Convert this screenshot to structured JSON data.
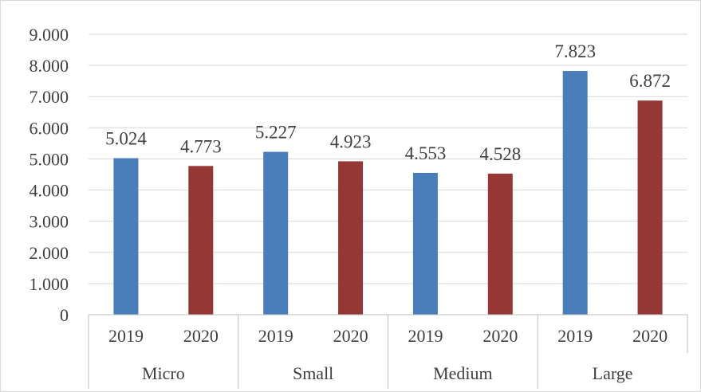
{
  "chart_data": {
    "type": "bar",
    "title": "",
    "xlabel": "",
    "ylabel": "",
    "ylim": [
      0,
      9
    ],
    "y_ticks": [
      0,
      1,
      2,
      3,
      4,
      5,
      6,
      7,
      8,
      9
    ],
    "y_tick_labels": [
      "0",
      "1.000",
      "2.000",
      "3.000",
      "4.000",
      "5.000",
      "6.000",
      "7.000",
      "8.000",
      "9.000"
    ],
    "grid": true,
    "legend": "none",
    "groups": [
      {
        "name": "Micro",
        "bars": [
          {
            "year": "2019",
            "value": 5.024,
            "label": "5.024"
          },
          {
            "year": "2020",
            "value": 4.773,
            "label": "4.773"
          }
        ]
      },
      {
        "name": "Small",
        "bars": [
          {
            "year": "2019",
            "value": 5.227,
            "label": "5.227"
          },
          {
            "year": "2020",
            "value": 4.923,
            "label": "4.923"
          }
        ]
      },
      {
        "name": "Medium",
        "bars": [
          {
            "year": "2019",
            "value": 4.553,
            "label": "4.553"
          },
          {
            "year": "2020",
            "value": 4.528,
            "label": "4.528"
          }
        ]
      },
      {
        "name": "Large",
        "bars": [
          {
            "year": "2019",
            "value": 7.823,
            "label": "7.823"
          },
          {
            "year": "2020",
            "value": 6.872,
            "label": "6.872"
          }
        ]
      }
    ],
    "colors": {
      "2019": "#4a7ebb",
      "2020": "#953735",
      "gridline": "#d9d9d9",
      "axis": "#bfbfbf",
      "text": "#404040"
    }
  }
}
